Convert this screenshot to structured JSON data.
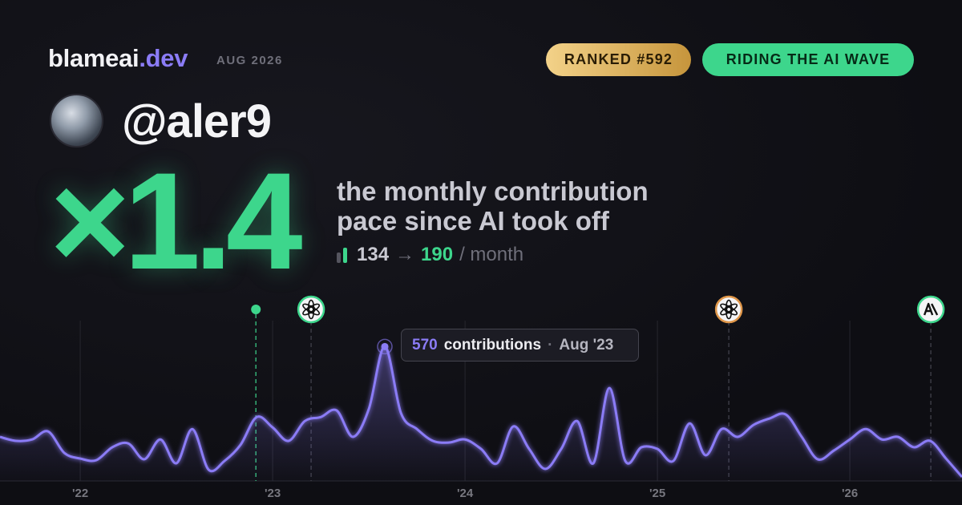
{
  "header": {
    "brand": "blameai",
    "brand_suffix": ".dev",
    "period": "AUG 2026",
    "rank_badge": "RANKED #592",
    "status_badge": "RIDING THE AI WAVE"
  },
  "profile": {
    "handle": "@aler9"
  },
  "headline": {
    "multiplier": "×1.4",
    "line1": "the monthly contribution",
    "line2": "pace since AI took off",
    "before": "134",
    "arrow": "→",
    "after": "190",
    "unit": "/ month"
  },
  "chart_data": {
    "type": "area",
    "x": [
      2021.583,
      2021.667,
      2021.75,
      2021.833,
      2021.917,
      2022,
      2022.083,
      2022.167,
      2022.25,
      2022.333,
      2022.417,
      2022.5,
      2022.583,
      2022.667,
      2022.75,
      2022.833,
      2022.917,
      2023,
      2023.083,
      2023.167,
      2023.25,
      2023.333,
      2023.417,
      2023.5,
      2023.583,
      2023.667,
      2023.75,
      2023.833,
      2023.917,
      2024,
      2024.083,
      2024.167,
      2024.25,
      2024.333,
      2024.417,
      2024.5,
      2024.583,
      2024.667,
      2024.75,
      2024.833,
      2024.917,
      2025,
      2025.083,
      2025.167,
      2025.25,
      2025.333,
      2025.417,
      2025.5,
      2025.583,
      2025.667,
      2025.75,
      2025.833,
      2025.917,
      2026,
      2026.083,
      2026.167,
      2026.25,
      2026.333,
      2026.417,
      2026.5,
      2026.583
    ],
    "series": [
      {
        "name": "contributions",
        "color": "#8b7cf6",
        "values": [
          187,
          170,
          176,
          210,
          119,
          95,
          88,
          143,
          159,
          92,
          176,
          75,
          220,
          48,
          85,
          153,
          271,
          227,
          170,
          254,
          271,
          299,
          187,
          305,
          570,
          288,
          220,
          170,
          163,
          176,
          136,
          75,
          231,
          136,
          51,
          136,
          254,
          75,
          394,
          85,
          143,
          136,
          85,
          244,
          109,
          220,
          187,
          238,
          265,
          282,
          187,
          92,
          129,
          176,
          220,
          176,
          187,
          143,
          170,
          95,
          17
        ]
      }
    ],
    "xlim": [
      2021.583,
      2026.583
    ],
    "xticks": [
      {
        "value": 2022,
        "label": "'22"
      },
      {
        "value": 2023,
        "label": "'23"
      },
      {
        "value": 2024,
        "label": "'24"
      },
      {
        "value": 2025,
        "label": "'25"
      },
      {
        "value": 2026,
        "label": "'26"
      }
    ],
    "ylim": [
      0,
      680
    ],
    "highlight": {
      "index": 24,
      "label": "contributions",
      "separator": "·",
      "date": "Aug '23"
    },
    "events": [
      {
        "x": 2022.913,
        "color": "#3dd68c",
        "kind": "dot"
      },
      {
        "x": 2023.2,
        "color": "#3dd68c",
        "kind": "openai"
      },
      {
        "x": 2025.371,
        "color": "#e0974a",
        "kind": "openai"
      },
      {
        "x": 2026.421,
        "color": "#3dd68c",
        "kind": "anthropic"
      }
    ]
  }
}
